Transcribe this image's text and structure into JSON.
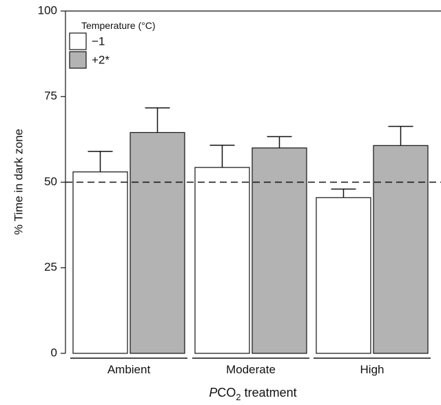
{
  "chart_data": {
    "type": "bar",
    "ylabel": "% Time in dark zone",
    "xlabel_parts": [
      "P",
      "CO",
      "2",
      " treatment"
    ],
    "legend_title": "Temperature (°C)",
    "categories": [
      "Ambient",
      "Moderate",
      "High"
    ],
    "series": [
      {
        "name": "−1",
        "color": "#ffffff",
        "values": [
          53,
          54.3,
          45.5
        ],
        "errors": [
          6,
          6.5,
          2.5
        ]
      },
      {
        "name": "+2*",
        "color": "#b3b3b3",
        "values": [
          64.5,
          60,
          60.7
        ],
        "errors": [
          7.2,
          3.3,
          5.6
        ]
      }
    ],
    "ylim": [
      0,
      100
    ],
    "yticks": [
      0,
      25,
      50,
      75,
      100
    ],
    "reference_line": 50,
    "legend_position": "upper left"
  }
}
